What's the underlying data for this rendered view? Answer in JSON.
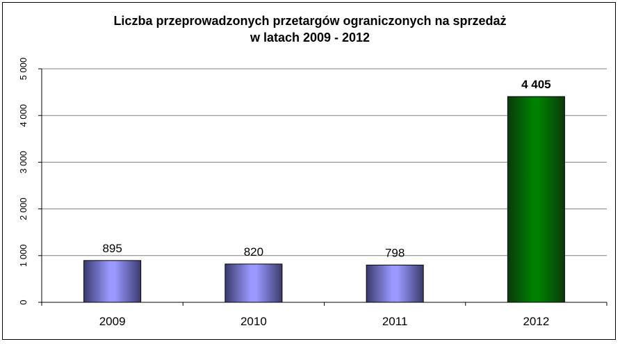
{
  "chart_data": {
    "type": "bar",
    "title_line1": "Liczba przeprowadzonych przetargów ograniczonych na sprzedaż",
    "title_line2": "w latach 2009 - 2012",
    "xlabel": "",
    "ylabel": "",
    "categories": [
      "2009",
      "2010",
      "2011",
      "2012"
    ],
    "values": [
      895,
      820,
      798,
      4405
    ],
    "data_labels": [
      "895",
      "820",
      "798",
      "4 405"
    ],
    "highlight_index": 3,
    "ylim": [
      0,
      5000
    ],
    "yticks": [
      0,
      1000,
      2000,
      3000,
      4000,
      5000
    ],
    "ytick_labels": [
      "0",
      "1 000",
      "2 000",
      "3 000",
      "4 000",
      "5 000"
    ],
    "grid": true,
    "legend": "none",
    "colors": {
      "bar": "#9999ff",
      "bar_dark": "#3b3b6e",
      "highlight": "#008000",
      "highlight_dark": "#0b3a0b",
      "grid": "#808080",
      "axis": "#000000"
    }
  }
}
